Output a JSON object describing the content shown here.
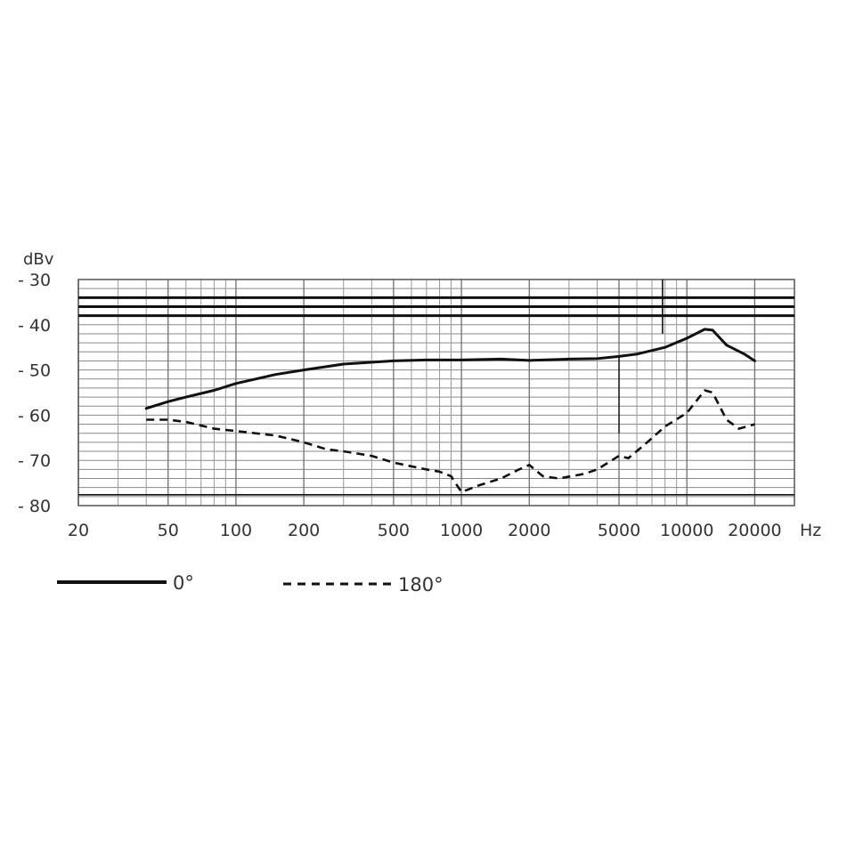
{
  "chart_data": {
    "type": "line",
    "title": "",
    "xlabel": "",
    "ylabel": "dBv",
    "x_unit": "Hz",
    "x_scale": "log",
    "xlim": [
      20,
      30000
    ],
    "ylim": [
      -80,
      -30
    ],
    "grid": true,
    "x_ticks": [
      20,
      50,
      100,
      200,
      500,
      1000,
      2000,
      5000,
      10000,
      20000
    ],
    "x_tick_labels": [
      "20",
      "50",
      "100",
      "200",
      "500",
      "1000",
      "2000",
      "5000",
      "10000",
      "20000"
    ],
    "y_ticks": [
      -30,
      -40,
      -50,
      -60,
      -70,
      -80
    ],
    "y_tick_labels": [
      "- 30",
      "- 40",
      "- 50",
      "- 60",
      "- 70",
      "- 80"
    ],
    "legend_position": "bottom-left",
    "series": [
      {
        "name": "0°",
        "line_style": "solid",
        "color": "#111111",
        "points": [
          [
            40,
            -58.5
          ],
          [
            50,
            -57
          ],
          [
            60,
            -56
          ],
          [
            80,
            -54.5
          ],
          [
            100,
            -53
          ],
          [
            150,
            -51
          ],
          [
            200,
            -50
          ],
          [
            300,
            -48.7
          ],
          [
            500,
            -48
          ],
          [
            700,
            -47.8
          ],
          [
            1000,
            -47.8
          ],
          [
            1500,
            -47.6
          ],
          [
            2000,
            -47.9
          ],
          [
            3000,
            -47.6
          ],
          [
            4000,
            -47.5
          ],
          [
            5000,
            -47
          ],
          [
            6000,
            -46.5
          ],
          [
            8000,
            -45
          ],
          [
            10000,
            -43
          ],
          [
            12000,
            -41
          ],
          [
            13000,
            -41.2
          ],
          [
            15000,
            -44.5
          ],
          [
            18000,
            -46.5
          ],
          [
            20000,
            -48
          ]
        ]
      },
      {
        "name": "180°",
        "line_style": "dashed",
        "color": "#111111",
        "points": [
          [
            40,
            -61
          ],
          [
            50,
            -61
          ],
          [
            60,
            -61.5
          ],
          [
            80,
            -63
          ],
          [
            100,
            -63.5
          ],
          [
            150,
            -64.5
          ],
          [
            200,
            -66
          ],
          [
            250,
            -67.5
          ],
          [
            300,
            -68
          ],
          [
            400,
            -69
          ],
          [
            500,
            -70.5
          ],
          [
            700,
            -72
          ],
          [
            800,
            -72.5
          ],
          [
            900,
            -73.5
          ],
          [
            1000,
            -77
          ],
          [
            1200,
            -75.5
          ],
          [
            1500,
            -74
          ],
          [
            1800,
            -72
          ],
          [
            2000,
            -71
          ],
          [
            2300,
            -73.5
          ],
          [
            2700,
            -74
          ],
          [
            3500,
            -73
          ],
          [
            4000,
            -72
          ],
          [
            5000,
            -69
          ],
          [
            5500,
            -69.5
          ],
          [
            6500,
            -66.5
          ],
          [
            8000,
            -62.5
          ],
          [
            10000,
            -59.5
          ],
          [
            12000,
            -54.5
          ],
          [
            13000,
            -55
          ],
          [
            15000,
            -61
          ],
          [
            17000,
            -63
          ],
          [
            20000,
            -62
          ]
        ]
      }
    ]
  }
}
